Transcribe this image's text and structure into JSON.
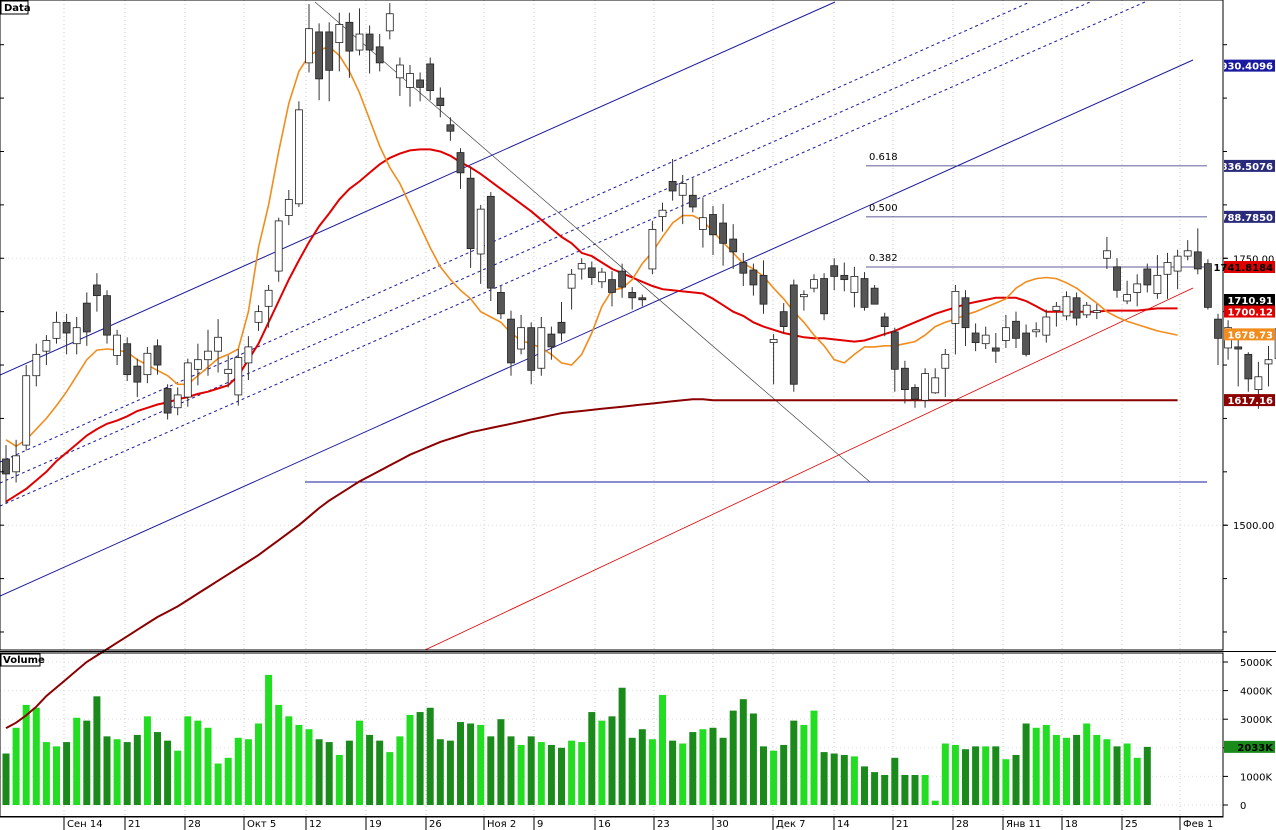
{
  "panels": {
    "price_label": "Data",
    "volume_label": "Volume"
  },
  "colors": {
    "bull_candle": "#ffffff",
    "bear_candle": "#555555",
    "ma_fast": "#f28c1c",
    "ma_mid": "#e00000",
    "ma_slow": "#8b0000",
    "channel": "#1a1aa0",
    "volume_up": "#22dd22",
    "volume_down": "#1a8a1a"
  },
  "chart_data": [
    {
      "type": "candlestick",
      "title": "Data",
      "x_tick_labels": [
        "Сен 14",
        "21",
        "28",
        "Окт 5",
        "12",
        "19",
        "26",
        "Ноя 2",
        "9",
        "16",
        "23",
        "30",
        "Дек 7",
        "14",
        "21",
        "28",
        "Янв 11",
        "18",
        "25",
        "Фев 1"
      ],
      "y_tick_labels": [
        "1750.00",
        "1500.00"
      ],
      "ylim": [
        1385,
        1990
      ],
      "price_tags": [
        {
          "value": "1930.4096",
          "color": "#1a1aa0",
          "text_color": "#ffffff"
        },
        {
          "value": "1836.5076",
          "color": "#2a2a7a",
          "text_color": "#ffffff"
        },
        {
          "value": "1788.7850",
          "color": "#2a2a7a",
          "text_color": "#ffffff"
        },
        {
          "value": "1741.8184",
          "color": "#e00000",
          "text_color": "#000000"
        },
        {
          "value": "1710.91",
          "color": "#000000",
          "text_color": "#ffffff"
        },
        {
          "value": "1700.12",
          "color": "#e00000",
          "text_color": "#ffffff"
        },
        {
          "value": "1678.73",
          "color": "#f28c1c",
          "text_color": "#ffffff"
        },
        {
          "value": "1617.16",
          "color": "#8b0000",
          "text_color": "#ffffff"
        }
      ],
      "fibonacci": [
        {
          "label": "0.618",
          "value": 1836.51
        },
        {
          "label": "0.500",
          "value": 1788.79
        },
        {
          "label": "0.382",
          "value": 1741.82
        }
      ],
      "support_level": 1600,
      "candles": [
        [
          1562,
          1548,
          1575,
          1520
        ],
        [
          1550,
          1565,
          1580,
          1540
        ],
        [
          1575,
          1640,
          1650,
          1570
        ],
        [
          1640,
          1660,
          1670,
          1630
        ],
        [
          1663,
          1673,
          1678,
          1650
        ],
        [
          1675,
          1690,
          1700,
          1670
        ],
        [
          1690,
          1680,
          1698,
          1660
        ],
        [
          1670,
          1685,
          1695,
          1660
        ],
        [
          1708,
          1681,
          1718,
          1668
        ],
        [
          1725,
          1715,
          1736,
          1700
        ],
        [
          1715,
          1678,
          1720,
          1670
        ],
        [
          1659,
          1678,
          1683,
          1650
        ],
        [
          1670,
          1641,
          1676,
          1635
        ],
        [
          1649,
          1634,
          1656,
          1620
        ],
        [
          1641,
          1661,
          1667,
          1633
        ],
        [
          1668,
          1650,
          1674,
          1641
        ],
        [
          1628,
          1605,
          1632,
          1599
        ],
        [
          1610,
          1622,
          1629,
          1603
        ],
        [
          1620,
          1652,
          1656,
          1611
        ],
        [
          1646,
          1655,
          1670,
          1631
        ],
        [
          1655,
          1663,
          1683,
          1640
        ],
        [
          1663,
          1676,
          1693,
          1643
        ],
        [
          1642,
          1646,
          1659,
          1629
        ],
        [
          1622,
          1657,
          1665,
          1612
        ],
        [
          1652,
          1667,
          1677,
          1636
        ],
        [
          1690,
          1700,
          1706,
          1682
        ],
        [
          1705,
          1720,
          1725,
          1685
        ],
        [
          1738,
          1785,
          1788,
          1728
        ],
        [
          1790,
          1805,
          1814,
          1781
        ],
        [
          1801,
          1889,
          1897,
          1798
        ],
        [
          1933,
          1965,
          1988,
          1924
        ],
        [
          1962,
          1918,
          1970,
          1898
        ],
        [
          1962,
          1926,
          1971,
          1897
        ],
        [
          1952,
          1969,
          1980,
          1925
        ],
        [
          1971,
          1944,
          1980,
          1919
        ],
        [
          1945,
          1960,
          1984,
          1940
        ],
        [
          1960,
          1945,
          1968,
          1923
        ],
        [
          1948,
          1933,
          1960,
          1925
        ],
        [
          1963,
          1979,
          1989,
          1955
        ],
        [
          1919,
          1931,
          1938,
          1902
        ],
        [
          1910,
          1923,
          1931,
          1892
        ],
        [
          1917,
          1910,
          1924,
          1897
        ],
        [
          1932,
          1907,
          1938,
          1898
        ],
        [
          1900,
          1893,
          1910,
          1882
        ],
        [
          1875,
          1869,
          1882,
          1860
        ],
        [
          1849,
          1830,
          1853,
          1815
        ],
        [
          1825,
          1759,
          1836,
          1741
        ],
        [
          1754,
          1796,
          1800,
          1726
        ],
        [
          1808,
          1722,
          1812,
          1710
        ],
        [
          1718,
          1698,
          1724,
          1693
        ],
        [
          1693,
          1652,
          1701,
          1640
        ],
        [
          1665,
          1685,
          1697,
          1660
        ],
        [
          1685,
          1645,
          1690,
          1632
        ],
        [
          1647,
          1685,
          1695,
          1640
        ],
        [
          1679,
          1667,
          1686,
          1655
        ],
        [
          1690,
          1680,
          1709,
          1672
        ],
        [
          1722,
          1735,
          1740,
          1702
        ],
        [
          1740,
          1745,
          1750,
          1730
        ],
        [
          1741,
          1732,
          1747,
          1725
        ],
        [
          1728,
          1737,
          1741,
          1722
        ],
        [
          1730,
          1718,
          1738,
          1705
        ],
        [
          1738,
          1723,
          1745,
          1713
        ],
        [
          1718,
          1713,
          1723,
          1702
        ],
        [
          1713,
          1712,
          1716,
          1705
        ],
        [
          1740,
          1777,
          1785,
          1735
        ],
        [
          1789,
          1795,
          1802,
          1775
        ],
        [
          1822,
          1813,
          1843,
          1804
        ],
        [
          1809,
          1820,
          1828,
          1782
        ],
        [
          1809,
          1798,
          1825,
          1793
        ],
        [
          1777,
          1788,
          1807,
          1760
        ],
        [
          1791,
          1772,
          1799,
          1753
        ],
        [
          1783,
          1764,
          1801,
          1743
        ],
        [
          1768,
          1756,
          1782,
          1740
        ],
        [
          1746,
          1736,
          1755,
          1724
        ],
        [
          1739,
          1725,
          1745,
          1715
        ],
        [
          1734,
          1707,
          1748,
          1698
        ],
        [
          1671,
          1674,
          1679,
          1632
        ],
        [
          1700,
          1686,
          1708,
          1680
        ],
        [
          1725,
          1632,
          1730,
          1625
        ],
        [
          1714,
          1716,
          1720,
          1701
        ],
        [
          1722,
          1730,
          1735,
          1718
        ],
        [
          1731,
          1698,
          1736,
          1692
        ],
        [
          1743,
          1733,
          1750,
          1720
        ],
        [
          1734,
          1730,
          1746,
          1719
        ],
        [
          1718,
          1733,
          1742,
          1704
        ],
        [
          1731,
          1704,
          1737,
          1701
        ],
        [
          1722,
          1707,
          1725,
          1710
        ],
        [
          1695,
          1686,
          1699,
          1677
        ],
        [
          1681,
          1646,
          1685,
          1625
        ],
        [
          1647,
          1627,
          1654,
          1614
        ],
        [
          1629,
          1618,
          1632,
          1610
        ],
        [
          1617,
          1642,
          1647,
          1610
        ],
        [
          1624,
          1638,
          1647,
          1623
        ],
        [
          1647,
          1660,
          1665,
          1620
        ],
        [
          1689,
          1719,
          1725,
          1660
        ],
        [
          1713,
          1685,
          1720,
          1668
        ],
        [
          1680,
          1671,
          1689,
          1663
        ],
        [
          1670,
          1678,
          1686,
          1665
        ],
        [
          1666,
          1663,
          1680,
          1652
        ],
        [
          1673,
          1685,
          1697,
          1666
        ],
        [
          1691,
          1675,
          1700,
          1666
        ],
        [
          1680,
          1660,
          1688,
          1658
        ],
        [
          1683,
          1683,
          1690,
          1676
        ],
        [
          1678,
          1695,
          1702,
          1671
        ],
        [
          1701,
          1705,
          1709,
          1686
        ],
        [
          1696,
          1714,
          1719,
          1692
        ],
        [
          1713,
          1694,
          1718,
          1687
        ],
        [
          1697,
          1706,
          1709,
          1694
        ],
        [
          1701,
          1701,
          1707,
          1693
        ],
        [
          1750,
          1757,
          1770,
          1740
        ],
        [
          1742,
          1720,
          1750,
          1713
        ],
        [
          1710,
          1716,
          1729,
          1707
        ],
        [
          1718,
          1726,
          1735,
          1705
        ],
        [
          1740,
          1725,
          1745,
          1718
        ],
        [
          1717,
          1734,
          1753,
          1712
        ],
        [
          1735,
          1746,
          1755,
          1712
        ],
        [
          1738,
          1752,
          1758,
          1721
        ],
        [
          1752,
          1757,
          1767,
          1748
        ],
        [
          1756,
          1740,
          1778,
          1735
        ],
        [
          1745,
          1704,
          1749,
          1702
        ],
        [
          1693,
          1675,
          1698,
          1650
        ],
        [
          1666,
          1685,
          1692,
          1655
        ],
        [
          1667,
          1665,
          1678,
          1630
        ],
        [
          1660,
          1637,
          1662,
          1625
        ],
        [
          1627,
          1639,
          1653,
          1609
        ],
        [
          1651,
          1655,
          1668,
          1630
        ],
        [
          1656,
          1684,
          1690,
          1637
        ],
        [
          1694,
          1679,
          1701,
          1660
        ],
        [
          1696,
          1704,
          1708,
          1685
        ]
      ],
      "ma_fast": [
        1580,
        1574,
        1580,
        1590,
        1600,
        1612,
        1625,
        1640,
        1655,
        1664,
        1665,
        1664,
        1662,
        1655,
        1650,
        1645,
        1640,
        1632,
        1632,
        1640,
        1648,
        1656,
        1660,
        1665,
        1700,
        1760,
        1800,
        1850,
        1895,
        1925,
        1940,
        1945,
        1948,
        1940,
        1925,
        1905,
        1880,
        1855,
        1835,
        1820,
        1800,
        1780,
        1760,
        1742,
        1730,
        1720,
        1712,
        1700,
        1695,
        1690,
        1680,
        1673,
        1670,
        1666,
        1660,
        1652,
        1650,
        1660,
        1680,
        1705,
        1720,
        1722,
        1730,
        1745,
        1756,
        1770,
        1783,
        1790,
        1790,
        1785,
        1775,
        1765,
        1755,
        1745,
        1740,
        1733,
        1722,
        1712,
        1700,
        1690,
        1678,
        1668,
        1655,
        1652,
        1660,
        1667,
        1667,
        1668,
        1668,
        1670,
        1672,
        1678,
        1686,
        1690,
        1693,
        1697,
        1700,
        1704,
        1708,
        1712,
        1722,
        1728,
        1731,
        1732,
        1731,
        1727,
        1722,
        1715,
        1708,
        1700,
        1695,
        1691,
        1688,
        1685,
        1682,
        1680,
        1678
      ],
      "ma_mid": [
        1522,
        1528,
        1534,
        1542,
        1550,
        1560,
        1568,
        1576,
        1584,
        1590,
        1595,
        1598,
        1602,
        1607,
        1610,
        1613,
        1615,
        1618,
        1620,
        1623,
        1625,
        1628,
        1631,
        1640,
        1655,
        1670,
        1690,
        1710,
        1730,
        1748,
        1765,
        1780,
        1792,
        1805,
        1815,
        1822,
        1830,
        1838,
        1844,
        1848,
        1851,
        1852,
        1852,
        1850,
        1846,
        1840,
        1835,
        1829,
        1822,
        1815,
        1808,
        1801,
        1794,
        1786,
        1778,
        1770,
        1764,
        1755,
        1752,
        1746,
        1740,
        1736,
        1732,
        1728,
        1724,
        1721,
        1720,
        1719,
        1718,
        1717,
        1712,
        1706,
        1700,
        1696,
        1690,
        1686,
        1683,
        1680,
        1678,
        1676,
        1675,
        1675,
        1674,
        1673,
        1672,
        1673,
        1676,
        1679,
        1682,
        1686,
        1690,
        1694,
        1698,
        1701,
        1704,
        1707,
        1709,
        1711,
        1713,
        1713,
        1713,
        1710,
        1705,
        1700,
        1700,
        1700,
        1700,
        1700,
        1700,
        1701,
        1701,
        1701,
        1701,
        1702,
        1703,
        1703,
        1703
      ],
      "ma_slow": [
        1310,
        1315,
        1322,
        1330,
        1340,
        1348,
        1356,
        1364,
        1372,
        1378,
        1384,
        1390,
        1396,
        1402,
        1408,
        1414,
        1419,
        1424,
        1430,
        1436,
        1442,
        1448,
        1454,
        1460,
        1466,
        1472,
        1479,
        1486,
        1493,
        1500,
        1508,
        1516,
        1523,
        1529,
        1535,
        1541,
        1546,
        1551,
        1556,
        1561,
        1566,
        1570,
        1574,
        1578,
        1581,
        1584,
        1587,
        1589,
        1591,
        1593,
        1595,
        1597,
        1599,
        1601,
        1603,
        1605,
        1606,
        1607,
        1608,
        1609,
        1610,
        1611,
        1612,
        1613,
        1614,
        1615,
        1616,
        1617,
        1618,
        1618,
        1617,
        1617,
        1617,
        1617,
        1617,
        1617,
        1617,
        1617,
        1617,
        1617,
        1617,
        1617,
        1617,
        1617,
        1617,
        1617,
        1617,
        1617,
        1617,
        1617,
        1617,
        1617,
        1617,
        1617,
        1617,
        1617,
        1617,
        1617,
        1617,
        1617,
        1617,
        1617,
        1617,
        1617,
        1617,
        1617,
        1617,
        1617,
        1617,
        1617,
        1617,
        1617,
        1617,
        1617,
        1617,
        1617,
        1617
      ]
    },
    {
      "type": "bar",
      "title": "Volume",
      "y_tick_labels": [
        "5000K",
        "4000K",
        "3000K",
        "2000K",
        "1000K",
        "0"
      ],
      "ylim": [
        0,
        5000
      ],
      "current_tag": "2033K",
      "values_k": [
        1800,
        2700,
        3500,
        3400,
        2200,
        2050,
        2200,
        3050,
        2950,
        3800,
        2400,
        2300,
        2200,
        2450,
        3100,
        2550,
        2250,
        1900,
        3100,
        2950,
        2700,
        1450,
        1650,
        2350,
        2300,
        2850,
        4550,
        3500,
        3100,
        2800,
        2650,
        2300,
        2200,
        1750,
        2250,
        2950,
        2450,
        2250,
        1850,
        2400,
        3150,
        3250,
        3400,
        2300,
        2250,
        2900,
        2850,
        2800,
        2400,
        3000,
        2400,
        2100,
        2400,
        2200,
        2100,
        2000,
        2250,
        2200,
        3250,
        2950,
        3100,
        4100,
        2350,
        2650,
        2300,
        3850,
        2250,
        2150,
        2550,
        2650,
        2700,
        2350,
        3300,
        3700,
        3200,
        2050,
        1900,
        2100,
        2950,
        2800,
        3300,
        1850,
        1800,
        1750,
        1700,
        1350,
        1150,
        1050,
        1650,
        1050,
        1050,
        1050,
        150,
        2150,
        2100,
        1950,
        2050,
        2050,
        2050,
        1600,
        1750,
        2850,
        2700,
        2800,
        2450,
        2350,
        2450,
        2850,
        2450,
        2300,
        2050,
        2150,
        1650,
        2033
      ]
    }
  ]
}
